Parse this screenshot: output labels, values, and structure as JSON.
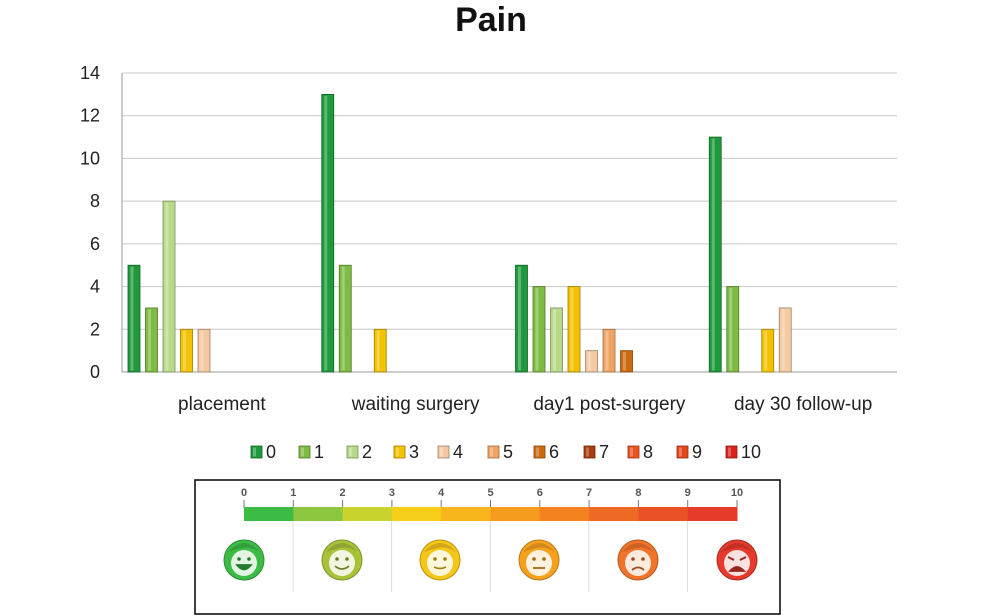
{
  "chart_data": {
    "type": "bar",
    "title": "Pain",
    "xlabel": "",
    "ylabel": "",
    "ylim": [
      0,
      14
    ],
    "yticks": [
      "0",
      "2",
      "4",
      "6",
      "8",
      "10",
      "12",
      "14"
    ],
    "grid": true,
    "legend_position": "bottom",
    "categories": [
      "placement",
      "waiting surgery",
      "day1 post-surgery",
      "day 30 follow-up"
    ],
    "series": [
      {
        "name": "0",
        "color": "#1e9a3c",
        "values": [
          5,
          13,
          5,
          11
        ]
      },
      {
        "name": "1",
        "color": "#7dbb42",
        "values": [
          3,
          5,
          4,
          4
        ]
      },
      {
        "name": "2",
        "color": "#b9d98a",
        "values": [
          8,
          0,
          3,
          0
        ]
      },
      {
        "name": "3",
        "color": "#f2c200",
        "values": [
          2,
          2,
          4,
          2
        ]
      },
      {
        "name": "4",
        "color": "#f3c9a2",
        "values": [
          2,
          0,
          1,
          3
        ]
      },
      {
        "name": "5",
        "color": "#f0a464",
        "values": [
          0,
          0,
          2,
          0
        ]
      },
      {
        "name": "6",
        "color": "#cc6a10",
        "values": [
          0,
          0,
          1,
          0
        ]
      },
      {
        "name": "7",
        "color": "#a83c0c",
        "values": [
          0,
          0,
          0,
          0
        ]
      },
      {
        "name": "8",
        "color": "#e9531e",
        "values": [
          0,
          0,
          0,
          0
        ]
      },
      {
        "name": "9",
        "color": "#e4471c",
        "values": [
          0,
          0,
          0,
          0
        ]
      },
      {
        "name": "10",
        "color": "#d9221c",
        "values": [
          0,
          0,
          0,
          0
        ]
      }
    ]
  },
  "pain_scale": {
    "numbers": [
      "0",
      "1",
      "2",
      "3",
      "4",
      "5",
      "6",
      "7",
      "8",
      "9",
      "10"
    ],
    "segment_colors": [
      "#3dbb47",
      "#8cc63e",
      "#c9d32e",
      "#f7cf1b",
      "#f8b51c",
      "#f59c1f",
      "#f3821f",
      "#ee6a24",
      "#ea5127",
      "#e63a2a"
    ],
    "faces": [
      {
        "icon": "happy-face-icon",
        "color": "#3dbb47"
      },
      {
        "icon": "smile-face-icon",
        "color": "#a8c23a"
      },
      {
        "icon": "slight-smile-face-icon",
        "color": "#f5c518"
      },
      {
        "icon": "neutral-face-icon",
        "color": "#f6a11e"
      },
      {
        "icon": "sad-face-icon",
        "color": "#f0742a"
      },
      {
        "icon": "crying-face-icon",
        "color": "#e53a2c"
      }
    ]
  }
}
